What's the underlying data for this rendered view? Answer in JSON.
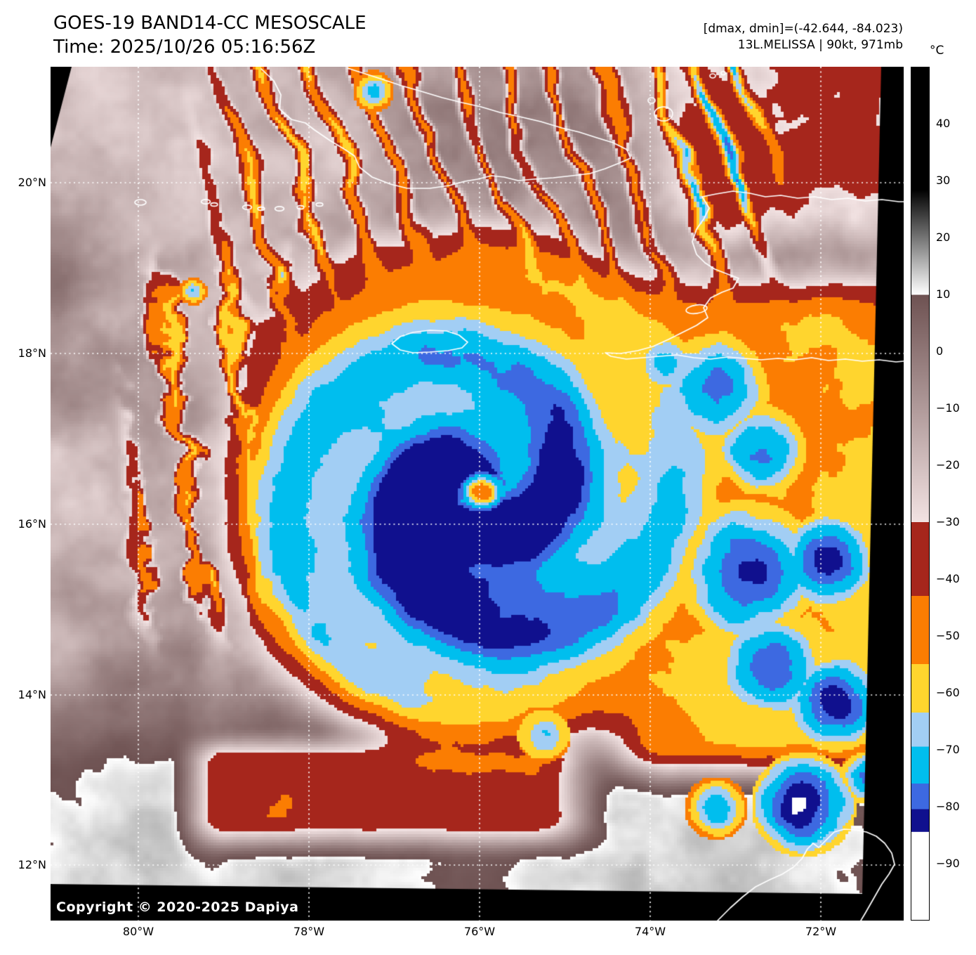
{
  "header": {
    "title": "GOES-19 BAND14-CC MESOSCALE",
    "time_line": "Time: 2025/10/26 05:16:56Z",
    "dmax_dmin_line": "[dmax, dmin]=(-42.644, -84.023)",
    "storm_line": "13L.MELISSA | 90kt, 971mb"
  },
  "map": {
    "copyright": "Copyright © 2020-2025 Dapiya"
  },
  "axes": {
    "lat_labels": [
      "20°N",
      "18°N",
      "16°N",
      "14°N",
      "12°N"
    ],
    "lon_labels": [
      "80°W",
      "78°W",
      "76°W",
      "74°W",
      "72°W"
    ]
  },
  "colorbar": {
    "unit_label": "°C",
    "tick_labels": [
      "40",
      "30",
      "20",
      "10",
      "0",
      "−10",
      "−20",
      "−30",
      "−40",
      "−50",
      "−60",
      "−70",
      "−80",
      "−90"
    ]
  },
  "palette": {
    "background_black": "#000000",
    "dark_red": "#A6261C",
    "orange": "#FB7D02",
    "yellow": "#FFD52E",
    "light_blue": "#A2CEF4",
    "cyan": "#00BEEE",
    "royal_blue": "#3D69E1",
    "navy": "#10108E",
    "white": "#FFFFFF",
    "mauve_dark": "#6E5252",
    "mauve_light": "#F2E2E2",
    "coastline": "#FFFFFF",
    "gridline": "#FFFFFF"
  }
}
